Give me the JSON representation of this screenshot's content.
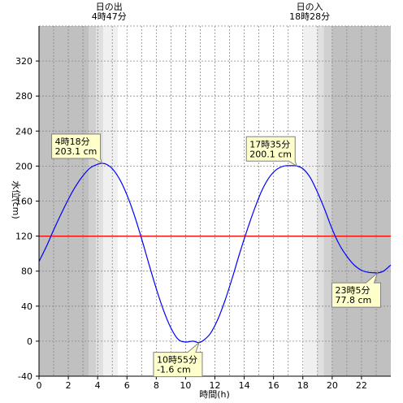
{
  "chart_data": {
    "type": "line",
    "xlabel": "時間(h)",
    "ylabel": "水位(cm)",
    "xlim": [
      0,
      24
    ],
    "ylim": [
      -40,
      360
    ],
    "x_ticks": [
      0,
      2,
      4,
      6,
      8,
      10,
      12,
      14,
      16,
      18,
      20,
      22
    ],
    "y_ticks": [
      -40,
      0,
      40,
      80,
      120,
      160,
      200,
      240,
      280,
      320
    ],
    "grid": true,
    "reference_line": {
      "value": 120,
      "color": "#ff0000"
    },
    "series": [
      {
        "color": "#0000ff",
        "x": [
          0,
          0.5,
          1,
          1.5,
          2,
          2.5,
          3,
          3.5,
          4,
          4.3,
          4.6,
          5,
          5.5,
          6,
          6.5,
          7,
          7.5,
          8,
          8.5,
          9,
          9.5,
          10,
          10.5,
          10.917,
          11.3,
          11.7,
          12.2,
          12.7,
          13.2,
          13.7,
          14.2,
          14.7,
          15.2,
          15.7,
          16.2,
          16.7,
          17.2,
          17.583,
          18,
          18.5,
          19,
          19.5,
          20,
          20.5,
          21,
          21.5,
          22,
          22.5,
          23,
          23.083,
          23.5,
          24
        ],
        "y": [
          91,
          108,
          127,
          145,
          162,
          177,
          189,
          198,
          202,
          203.1,
          202,
          197,
          185,
          167,
          144,
          117,
          88,
          60,
          35,
          15,
          2,
          -1,
          0,
          -1.6,
          2,
          9,
          25,
          47,
          73,
          101,
          127,
          151,
          172,
          187,
          196,
          200,
          200.5,
          200.1,
          197,
          187,
          170,
          150,
          128,
          110,
          97,
          87,
          81,
          78.5,
          78,
          77.8,
          80,
          87
        ]
      }
    ],
    "annotations": [
      {
        "time": "4時18分",
        "value": "203.1 cm",
        "x": 4.3,
        "y": 203.1
      },
      {
        "time": "10時55分",
        "value": "-1.6 cm",
        "x": 10.917,
        "y": -1.6
      },
      {
        "time": "17時35分",
        "value": "200.1 cm",
        "x": 17.583,
        "y": 200.1
      },
      {
        "time": "23時5分",
        "value": "77.8 cm",
        "x": 23.083,
        "y": 77.8
      }
    ],
    "sun_events": [
      {
        "label": "日の出",
        "time": "4時47分",
        "x": 4.783
      },
      {
        "label": "日の入",
        "time": "18時28分",
        "x": 18.467
      }
    ],
    "colors": {
      "night": "#c0c0c0",
      "twilight1": "#d0d0d0",
      "twilight2": "#e0e0e0",
      "twilight3": "#f0f0f0",
      "day": "#ffffff",
      "callout_fill": "#ffffcc",
      "callout_stroke": "#808080",
      "grid": "#888888"
    }
  }
}
